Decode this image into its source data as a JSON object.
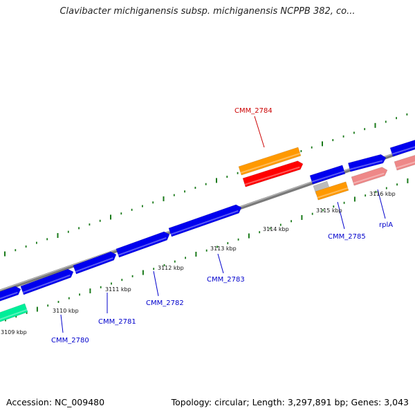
{
  "header": {
    "title": "Clavibacter michiganensis subsp. michiganensis NCPPB 382, co..."
  },
  "footer": {
    "accession": "Accession: NC_009480",
    "summary": "Topology: circular; Length: 3,297,891 bp; Genes: 3,043"
  },
  "colors": {
    "backbone": "#808080",
    "forward_gene": "#0000ee",
    "highlight_gene": "#ff0000",
    "orange_gene": "#ff9900",
    "teal_gene": "#00ee99",
    "pink_gene": "#ee8888",
    "gray_gene": "#bbbbbb",
    "tick": "#1a7a1a",
    "label_blue": "#0000cc",
    "label_red": "#cc0000"
  },
  "scale": {
    "tick_labels": [
      "3109 kbp",
      "3110 kbp",
      "3111 kbp",
      "3112 kbp",
      "3113 kbp",
      "3114 kbp",
      "3115 kbp",
      "3116 kbp"
    ]
  },
  "gene_labels": [
    "CMM_2780",
    "CMM_2781",
    "CMM_2782",
    "CMM_2783",
    "CMM_2784",
    "CMM_2785",
    "rplA"
  ]
}
